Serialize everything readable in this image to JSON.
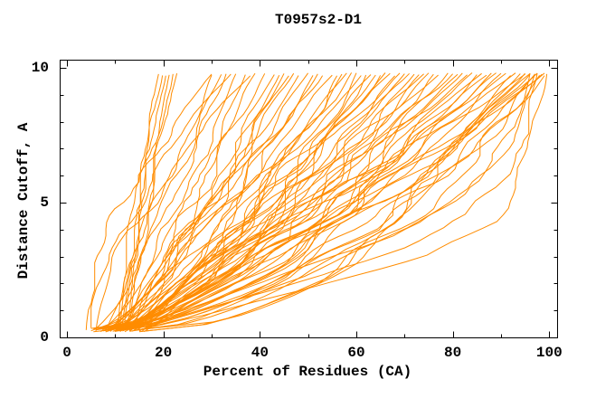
{
  "window": {
    "background": "#ffffff"
  },
  "chart_data": {
    "type": "line",
    "title": "T0957s2-D1",
    "xlabel": "Percent of Residues (CA)",
    "ylabel": "Distance Cutoff, A",
    "xlim": [
      0,
      100
    ],
    "ylim": [
      0,
      10
    ],
    "xticks_major": [
      0,
      20,
      40,
      60,
      80,
      100
    ],
    "xticks_minor": [
      10,
      30,
      50,
      70,
      90
    ],
    "yticks_major": [
      0,
      5,
      10
    ],
    "yticks_minor": [
      1,
      2,
      3,
      4,
      6,
      7,
      8,
      9
    ],
    "grid": false,
    "legend": false,
    "line_color": "#ff8c00",
    "axis_color": "#000000",
    "text_color": "#000000",
    "background": "#ffffff",
    "n_curves": 80,
    "y_start": 0.25,
    "y_end": 9.78,
    "curve_model": "Each parametric curve entry is [start_x, top_x, shape]: x(y) = start_x + (top_x - start_x) * ((y - y_start)/(y_end - y_start))^shape, y rising from ~0.25 to ~9.78 A. Explicit curves are [x,y] control points interpolated linearly. Values estimated from plot.",
    "curves": [
      [
        10.5,
        19,
        1.25
      ],
      [
        11,
        19.8,
        1.3
      ],
      [
        11.5,
        20.5,
        1.2
      ],
      [
        12,
        21.2,
        1.35
      ],
      [
        12.5,
        22,
        1.25
      ],
      [
        13,
        22.8,
        1.3
      ],
      [
        4,
        30,
        1.7
      ],
      [
        5,
        34,
        1.6
      ],
      [
        6,
        38,
        1.55
      ],
      [
        8,
        30,
        1.0
      ],
      [
        10,
        32,
        1.1
      ],
      [
        6,
        33,
        0.8
      ],
      [
        12,
        35,
        1.0
      ],
      [
        9,
        37,
        0.7
      ],
      [
        14,
        39,
        1.15
      ],
      [
        7,
        41,
        0.85
      ],
      [
        11,
        43,
        0.95
      ],
      [
        5,
        45,
        0.65
      ],
      [
        13,
        46,
        1.05
      ],
      [
        8.5,
        48,
        0.8
      ],
      [
        15,
        50,
        1.1
      ],
      [
        6.5,
        51,
        0.7
      ],
      [
        10,
        53,
        0.9
      ],
      [
        12.5,
        55,
        1.0
      ],
      [
        7.5,
        56,
        0.6
      ],
      [
        14,
        58,
        0.85
      ],
      [
        9,
        59,
        0.75
      ],
      [
        11,
        61,
        0.95
      ],
      [
        5.5,
        62,
        0.55
      ],
      [
        13,
        64,
        0.9
      ],
      [
        8,
        65,
        0.7
      ],
      [
        15.5,
        67,
        1.0
      ],
      [
        10.5,
        68,
        0.8
      ],
      [
        6,
        70,
        0.6
      ],
      [
        12,
        71,
        0.9
      ],
      [
        9.5,
        73,
        0.72
      ],
      [
        14.5,
        74,
        0.95
      ],
      [
        7,
        76,
        0.62
      ],
      [
        11.5,
        77,
        0.85
      ],
      [
        5,
        79,
        0.55
      ],
      [
        13.5,
        80,
        0.9
      ],
      [
        8.5,
        81,
        0.68
      ],
      [
        16,
        83,
        0.95
      ],
      [
        10,
        84,
        0.75
      ],
      [
        6.5,
        85,
        0.58
      ],
      [
        12.5,
        86,
        0.85
      ],
      [
        9,
        88,
        0.65
      ],
      [
        15,
        89,
        0.9
      ],
      [
        7.5,
        90,
        0.6
      ],
      [
        11,
        91,
        0.8
      ],
      [
        5.5,
        92,
        0.52
      ],
      [
        13,
        93,
        0.85
      ],
      [
        8,
        94,
        0.62
      ],
      [
        16.5,
        95,
        0.9
      ],
      [
        10.5,
        96,
        0.7
      ],
      [
        6,
        97,
        0.55
      ],
      [
        12,
        97.5,
        0.8
      ],
      [
        9.5,
        98.5,
        0.6
      ],
      [
        14,
        99,
        0.75
      ],
      [
        9,
        47,
        0.88
      ],
      [
        11,
        52,
        0.78
      ],
      [
        7,
        57,
        0.66
      ],
      [
        13,
        63,
        0.92
      ],
      [
        10,
        66,
        0.74
      ],
      [
        8,
        72,
        0.64
      ],
      [
        12,
        75,
        0.88
      ],
      [
        9.5,
        82,
        0.7
      ],
      [
        11.5,
        87,
        0.82
      ],
      [
        6.5,
        60,
        0.5
      ],
      [
        15,
        69,
        1.05
      ],
      [
        7.5,
        44,
        0.75
      ],
      [
        16,
        97,
        0.5
      ],
      [
        14,
        95,
        0.55
      ],
      [
        15,
        98,
        0.52
      ],
      [
        13,
        96,
        0.58
      ],
      [
        17,
        99,
        0.5
      ]
    ],
    "curves_explicit": [
      [
        [
          14,
          0.25
        ],
        [
          28,
          0.8
        ],
        [
          48,
          1.7
        ],
        [
          74,
          3.0
        ],
        [
          88,
          4.3
        ],
        [
          93,
          5.5
        ],
        [
          96,
          7.2
        ],
        [
          98,
          8.6
        ],
        [
          99.5,
          9.75
        ]
      ],
      [
        [
          13,
          0.25
        ],
        [
          26,
          0.9
        ],
        [
          45,
          1.9
        ],
        [
          68,
          3.2
        ],
        [
          84,
          4.6
        ],
        [
          91,
          6.0
        ],
        [
          95,
          7.6
        ],
        [
          97.5,
          9.75
        ]
      ],
      [
        [
          12,
          0.3
        ],
        [
          24,
          1.0
        ],
        [
          42,
          2.1
        ],
        [
          63,
          3.5
        ],
        [
          80,
          5.0
        ],
        [
          88,
          6.4
        ],
        [
          93,
          7.8
        ],
        [
          96,
          9.75
        ]
      ],
      [
        [
          15,
          0.3
        ],
        [
          30,
          1.1
        ],
        [
          50,
          2.3
        ],
        [
          70,
          3.9
        ],
        [
          83,
          5.4
        ],
        [
          90,
          6.8
        ],
        [
          94,
          8.2
        ],
        [
          97,
          9.75
        ]
      ]
    ]
  }
}
